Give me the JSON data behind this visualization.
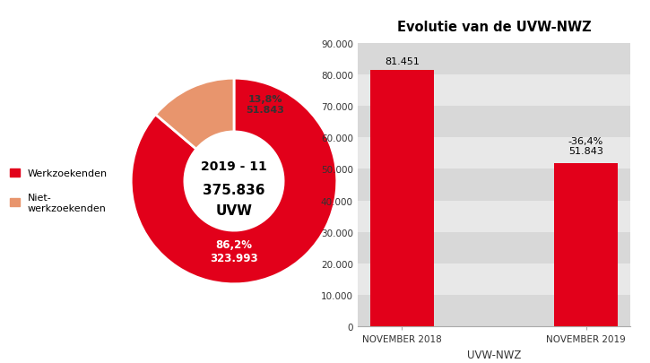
{
  "donut_values": [
    323993,
    51843
  ],
  "donut_colors": [
    "#e2001a",
    "#e8956d"
  ],
  "donut_label_red": "86,2%\n323.993",
  "donut_label_orange": "13,8%\n51.843",
  "donut_center_line1": "2019 - 11",
  "donut_center_line2": "375.836",
  "donut_center_line3": "UVW",
  "legend_labels": [
    "Werkzoekenden",
    "Niet-\nwerkzoekenden"
  ],
  "legend_colors": [
    "#e2001a",
    "#e8956d"
  ],
  "bar_categories": [
    "NOVEMBER 2018",
    "NOVEMBER 2019"
  ],
  "bar_values": [
    81451,
    51843
  ],
  "bar_color": "#e2001a",
  "bar_xlabel": "UVW-NWZ",
  "bar_title": "Evolutie van de UVW-NWZ",
  "bar_ylim": [
    0,
    90000
  ],
  "bar_yticks": [
    0,
    10000,
    20000,
    30000,
    40000,
    50000,
    60000,
    70000,
    80000,
    90000
  ],
  "bar_ytick_labels": [
    "0",
    "10.000",
    "20.000",
    "30.000",
    "40.000",
    "50.000",
    "60.000",
    "70.000",
    "80.000",
    "90.000"
  ],
  "bar_ann0_text": "81.451",
  "bar_ann1_text": "-36,4%\n51.843",
  "background_color": "#ffffff",
  "bar_bg_color": "#e0e0e0",
  "bar_stripe_color": "#cccccc"
}
